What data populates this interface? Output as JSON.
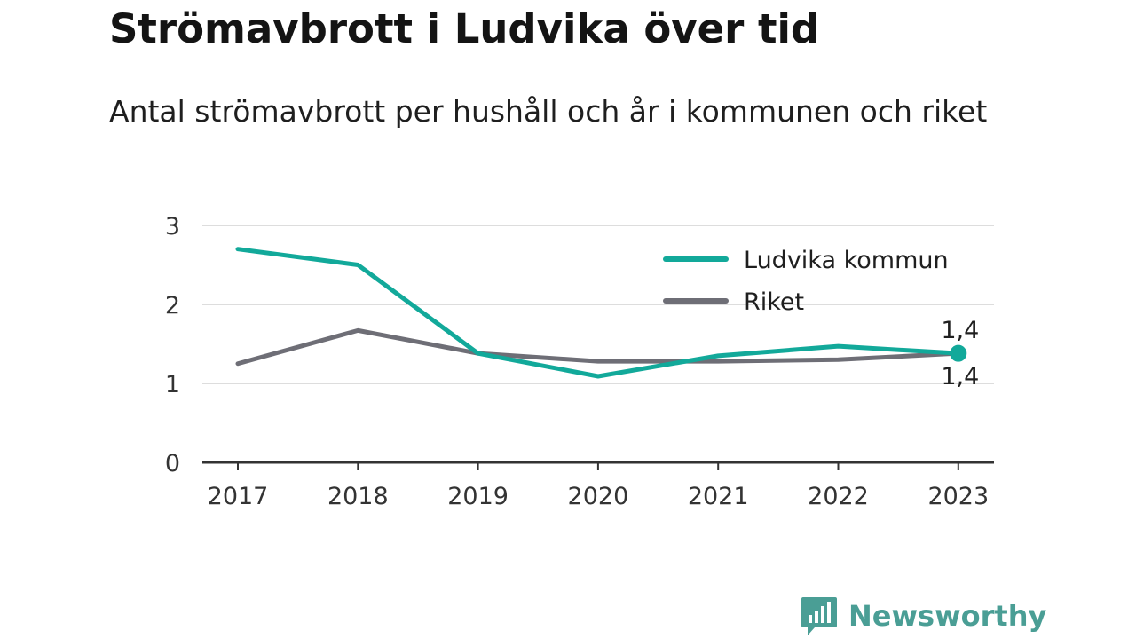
{
  "title": "Strömavbrott i Ludvika över tid",
  "subtitle": "Antal strömavbrott per hushåll och år i kommunen och riket",
  "brand": {
    "name": "Newsworthy",
    "icon": "newsworthy-logo-icon",
    "color": "#4a9e95"
  },
  "chart_data": {
    "type": "line",
    "title": "Strömavbrott i Ludvika över tid",
    "subtitle": "Antal strömavbrott per hushåll och år i kommunen och riket",
    "xlabel": "",
    "ylabel": "",
    "x": [
      "2017",
      "2018",
      "2019",
      "2020",
      "2021",
      "2022",
      "2023"
    ],
    "ylim": [
      0,
      3
    ],
    "yticks": [
      0,
      1,
      2,
      3
    ],
    "ytick_labels": [
      "0",
      "1",
      "2",
      "3"
    ],
    "grid": true,
    "legend_position": "top-right",
    "series": [
      {
        "name": "Ludvika kommun",
        "color": "#12a99a",
        "values": [
          2.7,
          2.5,
          1.38,
          1.09,
          1.35,
          1.47,
          1.38
        ],
        "end_label": "1,4"
      },
      {
        "name": "Riket",
        "color": "#6e6e76",
        "values": [
          1.25,
          1.67,
          1.38,
          1.28,
          1.28,
          1.3,
          1.38
        ],
        "end_label": "1,4"
      }
    ]
  }
}
